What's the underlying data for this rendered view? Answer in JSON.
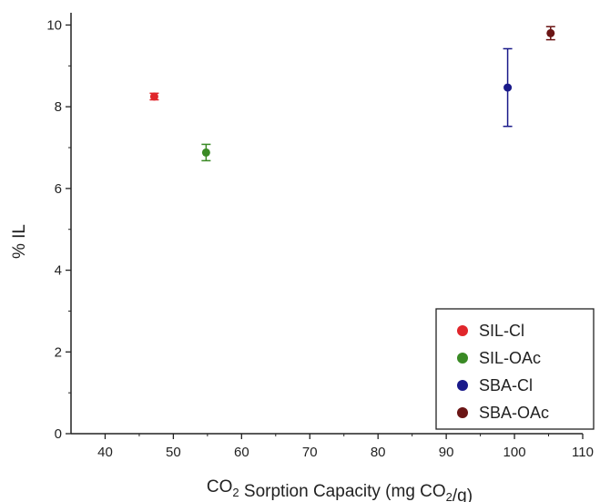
{
  "chart_data": {
    "type": "scatter",
    "xlabel": "CO2 Sorption Capacity (mg CO2/g)",
    "ylabel": "% IL",
    "xlim": [
      35,
      110
    ],
    "ylim": [
      0,
      10.3
    ],
    "x_ticks": [
      40,
      50,
      60,
      70,
      80,
      90,
      100,
      110
    ],
    "y_ticks": [
      0,
      2,
      4,
      6,
      8,
      10
    ],
    "grid": false,
    "legend_position": "bottom-right",
    "series": [
      {
        "name": "SIL-Cl",
        "color": "#e0262b",
        "points": [
          {
            "x": 47.2,
            "y": 8.25,
            "err": 0.08
          }
        ]
      },
      {
        "name": "SIL-OAc",
        "color": "#3a8a25",
        "points": [
          {
            "x": 54.8,
            "y": 6.88,
            "err": 0.2
          }
        ]
      },
      {
        "name": "SBA-Cl",
        "color": "#1a1a8a",
        "points": [
          {
            "x": 99.0,
            "y": 8.47,
            "err": 0.95
          }
        ]
      },
      {
        "name": "SBA-OAc",
        "color": "#6b1515",
        "points": [
          {
            "x": 105.3,
            "y": 9.8,
            "err": 0.16
          }
        ]
      }
    ]
  }
}
